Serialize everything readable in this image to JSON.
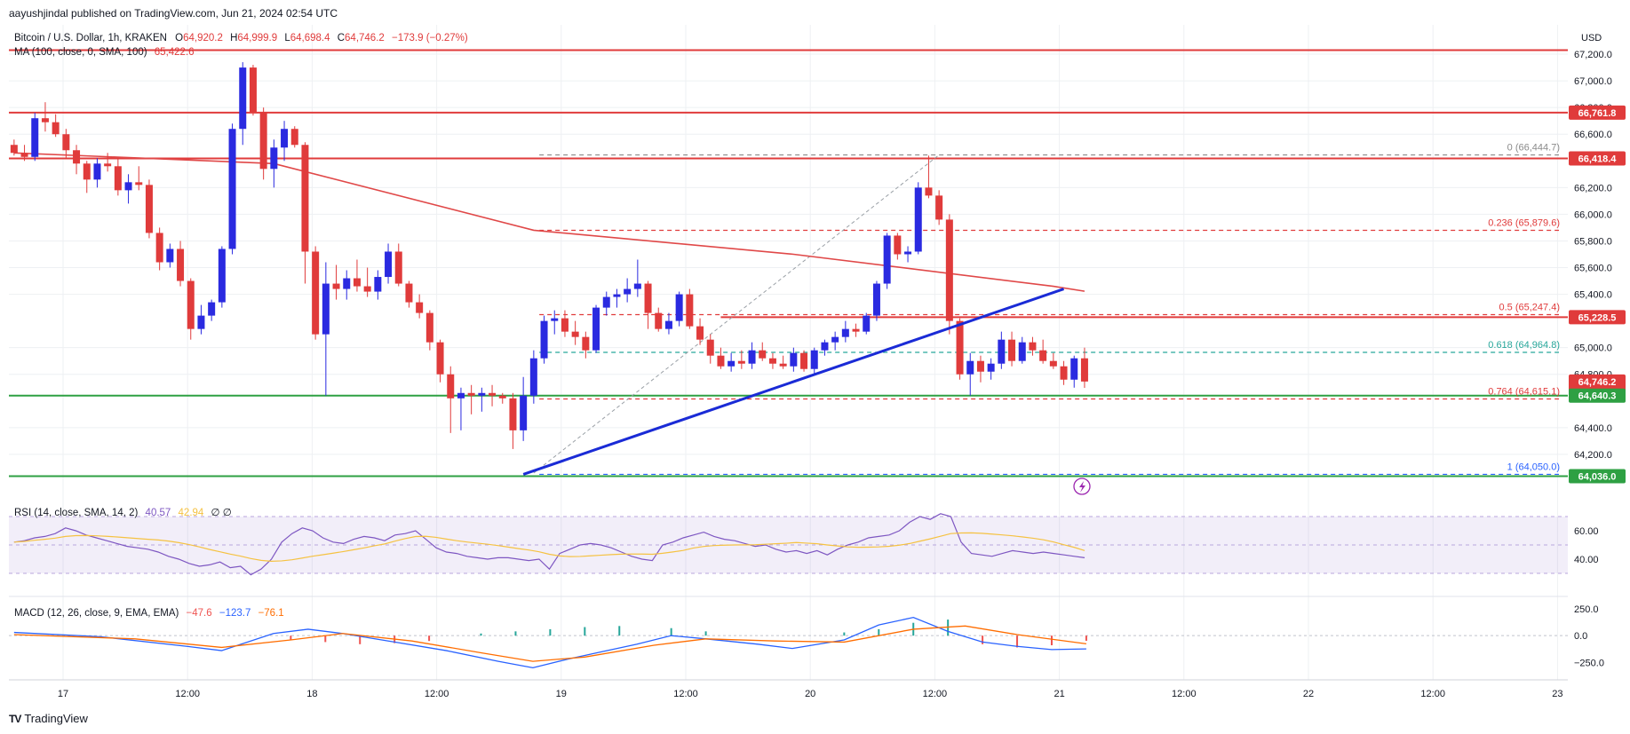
{
  "header": {
    "publish_line": "aayushjindal published on TradingView.com, Jun 21, 2024 02:54 UTC"
  },
  "legend": {
    "symbol": "Bitcoin / U.S. Dollar, 1h, KRAKEN",
    "ohlc": [
      {
        "label": "O",
        "value": "64,920.2"
      },
      {
        "label": "H",
        "value": "64,999.9"
      },
      {
        "label": "L",
        "value": "64,698.4"
      },
      {
        "label": "C",
        "value": "64,746.2"
      }
    ],
    "change": "−173.9 (−0.27%)",
    "ma_label": "MA (100, close, 0, SMA, 100)",
    "ma_value": "65,422.6",
    "rsi_label": "RSI (14, close, SMA, 14, 2)",
    "rsi_value": "40.57",
    "rsi_ma_value": "42.94",
    "rsi_extra": "∅  ∅",
    "macd_label": "MACD (12, 26, close, 9, EMA, EMA)",
    "macd_hist": "−47.6",
    "macd_value": "−123.7",
    "macd_signal": "−76.1"
  },
  "footer": {
    "brand": "TradingView",
    "logo_text": "TV"
  },
  "colors": {
    "up": "#2a2ae0",
    "down": "#e03b3b",
    "ma": "#e04848",
    "support": "#2ea043",
    "trend": "#1a2bd6",
    "rsi": "#7e57c2",
    "rsi_ma": "#f5c242",
    "macd": "#2962ff",
    "signal": "#ff6d00",
    "hist_up": "#26a69a",
    "hist_down": "#ef5350"
  },
  "chart_data": {
    "type": "candlestick",
    "currency": "USD",
    "y_ticks": [
      "67,200.0",
      "67,000.0",
      "66,800.0",
      "66,600.0",
      "66,200.0",
      "66,000.0",
      "65,800.0",
      "65,600.0",
      "65,400.0",
      "65,000.0",
      "64,800.0",
      "64,400.0",
      "64,200.0"
    ],
    "ylim": [
      63880,
      67420
    ],
    "x_ticks": [
      "17",
      "12:00",
      "18",
      "12:00",
      "19",
      "12:00",
      "20",
      "12:00",
      "21",
      "12:00",
      "22",
      "12:00",
      "23"
    ],
    "candles": [
      [
        66520,
        66560,
        66440,
        66460
      ],
      [
        66460,
        66520,
        66400,
        66430
      ],
      [
        66430,
        66760,
        66400,
        66720
      ],
      [
        66720,
        66840,
        66620,
        66690
      ],
      [
        66690,
        66750,
        66580,
        66600
      ],
      [
        66600,
        66640,
        66420,
        66480
      ],
      [
        66480,
        66520,
        66300,
        66380
      ],
      [
        66380,
        66400,
        66160,
        66260
      ],
      [
        66260,
        66420,
        66200,
        66380
      ],
      [
        66380,
        66460,
        66320,
        66360
      ],
      [
        66360,
        66420,
        66140,
        66180
      ],
      [
        66180,
        66300,
        66080,
        66240
      ],
      [
        66240,
        66360,
        66180,
        66220
      ],
      [
        66220,
        66260,
        65820,
        65860
      ],
      [
        65860,
        65900,
        65580,
        65640
      ],
      [
        65640,
        65780,
        65600,
        65740
      ],
      [
        65740,
        65800,
        65460,
        65500
      ],
      [
        65500,
        65520,
        65060,
        65140
      ],
      [
        65140,
        65320,
        65100,
        65240
      ],
      [
        65240,
        65360,
        65200,
        65340
      ],
      [
        65340,
        65760,
        65300,
        65740
      ],
      [
        65740,
        66680,
        65700,
        66640
      ],
      [
        66640,
        67140,
        66520,
        67100
      ],
      [
        67100,
        67120,
        66740,
        66760
      ],
      [
        66760,
        66800,
        66260,
        66340
      ],
      [
        66340,
        66560,
        66200,
        66500
      ],
      [
        66500,
        66700,
        66400,
        66640
      ],
      [
        66640,
        66660,
        66500,
        66520
      ],
      [
        66520,
        66540,
        65480,
        65720
      ],
      [
        65720,
        65760,
        65060,
        65100
      ],
      [
        65100,
        65640,
        64640,
        65480
      ],
      [
        65480,
        65620,
        65360,
        65440
      ],
      [
        65440,
        65580,
        65360,
        65520
      ],
      [
        65520,
        65660,
        65420,
        65460
      ],
      [
        65460,
        65600,
        65380,
        65420
      ],
      [
        65420,
        65580,
        65360,
        65530
      ],
      [
        65530,
        65780,
        65480,
        65720
      ],
      [
        65720,
        65780,
        65460,
        65480
      ],
      [
        65480,
        65500,
        65300,
        65340
      ],
      [
        65340,
        65400,
        65220,
        65260
      ],
      [
        65260,
        65280,
        64980,
        65040
      ],
      [
        65040,
        65060,
        64740,
        64800
      ],
      [
        64800,
        64860,
        64360,
        64620
      ],
      [
        64620,
        64700,
        64380,
        64660
      ],
      [
        64660,
        64720,
        64500,
        64640
      ],
      [
        64640,
        64700,
        64520,
        64660
      ],
      [
        64660,
        64720,
        64560,
        64640
      ],
      [
        64640,
        64660,
        64580,
        64620
      ],
      [
        64620,
        64660,
        64240,
        64380
      ],
      [
        64380,
        64780,
        64300,
        64640
      ],
      [
        64640,
        64980,
        64580,
        64920
      ],
      [
        64920,
        65240,
        64880,
        65200
      ],
      [
        65200,
        65280,
        65100,
        65220
      ],
      [
        65220,
        65280,
        65080,
        65120
      ],
      [
        65120,
        65200,
        65020,
        65080
      ],
      [
        65080,
        65120,
        64920,
        64980
      ],
      [
        64980,
        65320,
        64960,
        65300
      ],
      [
        65300,
        65420,
        65240,
        65380
      ],
      [
        65380,
        65440,
        65300,
        65400
      ],
      [
        65400,
        65520,
        65340,
        65440
      ],
      [
        65440,
        65660,
        65380,
        65480
      ],
      [
        65480,
        65500,
        65140,
        65260
      ],
      [
        65260,
        65300,
        65120,
        65140
      ],
      [
        65140,
        65260,
        65100,
        65200
      ],
      [
        65200,
        65420,
        65160,
        65400
      ],
      [
        65400,
        65440,
        65140,
        65160
      ],
      [
        65160,
        65220,
        65020,
        65060
      ],
      [
        65060,
        65100,
        64880,
        64940
      ],
      [
        64940,
        65000,
        64840,
        64860
      ],
      [
        64860,
        64960,
        64820,
        64900
      ],
      [
        64900,
        64980,
        64840,
        64880
      ],
      [
        64880,
        65040,
        64840,
        64980
      ],
      [
        64980,
        65040,
        64900,
        64920
      ],
      [
        64920,
        64960,
        64840,
        64880
      ],
      [
        64880,
        64940,
        64840,
        64860
      ],
      [
        64860,
        65000,
        64820,
        64960
      ],
      [
        64960,
        64980,
        64820,
        64840
      ],
      [
        64840,
        65000,
        64800,
        64980
      ],
      [
        64980,
        65060,
        64940,
        65040
      ],
      [
        65040,
        65120,
        64980,
        65080
      ],
      [
        65080,
        65200,
        65040,
        65140
      ],
      [
        65140,
        65180,
        65080,
        65120
      ],
      [
        65120,
        65260,
        65100,
        65240
      ],
      [
        65240,
        65500,
        65200,
        65480
      ],
      [
        65480,
        65860,
        65440,
        65840
      ],
      [
        65840,
        65860,
        65660,
        65700
      ],
      [
        65700,
        65760,
        65640,
        65720
      ],
      [
        65720,
        66240,
        65700,
        66200
      ],
      [
        66200,
        66440,
        66120,
        66140
      ],
      [
        66140,
        66180,
        65920,
        65960
      ],
      [
        65960,
        66000,
        65100,
        65200
      ],
      [
        65200,
        65220,
        64760,
        64800
      ],
      [
        64800,
        64960,
        64640,
        64900
      ],
      [
        64900,
        64940,
        64740,
        64820
      ],
      [
        64820,
        64920,
        64760,
        64880
      ],
      [
        64880,
        65120,
        64840,
        65060
      ],
      [
        65060,
        65120,
        64860,
        64900
      ],
      [
        64900,
        65080,
        64880,
        65040
      ],
      [
        65040,
        65080,
        64940,
        64980
      ],
      [
        64980,
        65060,
        64880,
        64900
      ],
      [
        64900,
        64960,
        64840,
        64860
      ],
      [
        64860,
        64900,
        64720,
        64760
      ],
      [
        64760,
        64940,
        64700,
        64920
      ],
      [
        64920,
        65000,
        64698,
        64746
      ]
    ],
    "ma_100": [
      [
        0,
        66460
      ],
      [
        25,
        66380
      ],
      [
        50,
        65880
      ],
      [
        75,
        65700
      ],
      [
        100,
        65460
      ],
      [
        103,
        65423
      ]
    ],
    "price_labels": [
      {
        "value": "66,761.8",
        "color": "#e03b3b"
      },
      {
        "value": "66,418.4",
        "color": "#e03b3b"
      },
      {
        "value": "65,228.5",
        "color": "#e03b3b"
      },
      {
        "value": "64,746.2",
        "color": "#e03b3b",
        "sub": "05:35"
      },
      {
        "value": "64,640.3",
        "color": "#2ea043"
      },
      {
        "value": "64,036.0",
        "color": "#2ea043"
      }
    ],
    "horizontal_levels": [
      {
        "price": 67230,
        "color": "#e03b3b"
      },
      {
        "price": 66761.8,
        "color": "#e03b3b"
      },
      {
        "price": 66418.4,
        "color": "#e03b3b"
      },
      {
        "price": 65228.5,
        "color": "#e03b3b",
        "from": 68
      },
      {
        "price": 64640.3,
        "color": "#2ea043"
      },
      {
        "price": 64036.0,
        "color": "#2ea043"
      }
    ],
    "fibonacci": {
      "from_index": 49,
      "to_index": 104,
      "levels": [
        {
          "label": "0 (66,444.7)",
          "price": 66444.7,
          "color": "#8a8a8a"
        },
        {
          "label": "0.236 (65,879.6)",
          "price": 65879.6,
          "color": "#e03b3b"
        },
        {
          "label": "0.5 (65,247.4)",
          "price": 65247.4,
          "color": "#e03b3b"
        },
        {
          "label": "0.618 (64,964.8)",
          "price": 64964.8,
          "color": "#26a69a"
        },
        {
          "label": "0.764 (64,615.1)",
          "price": 64615.1,
          "color": "#e03b3b"
        },
        {
          "label": "1 (64,050.0)",
          "price": 64050.0,
          "color": "#2962ff"
        }
      ]
    },
    "trendline": [
      [
        49,
        64050
      ],
      [
        101,
        65440
      ]
    ],
    "fib_diagonal": [
      [
        50,
        64060
      ],
      [
        89,
        66444.7
      ]
    ],
    "rsi": {
      "y_ticks": [
        "60.00",
        "40.00"
      ],
      "ylim": [
        20,
        80
      ],
      "band": [
        30,
        70
      ],
      "values": [
        52,
        53,
        55,
        56,
        58,
        62,
        60,
        57,
        55,
        53,
        51,
        49,
        48,
        47,
        45,
        42,
        40,
        37,
        35,
        36,
        38,
        34,
        35,
        29,
        33,
        40,
        52,
        58,
        62,
        60,
        55,
        52,
        51,
        54,
        56,
        55,
        53,
        57,
        58,
        60,
        54,
        48,
        45,
        44,
        42,
        41,
        40,
        41,
        41,
        40,
        39,
        40,
        33,
        44,
        47,
        50,
        51,
        50,
        48,
        45,
        42,
        40,
        39,
        50,
        52,
        55,
        57,
        59,
        56,
        54,
        53,
        51,
        49,
        50,
        47,
        45,
        46,
        44,
        46,
        43,
        47,
        50,
        52,
        55,
        56,
        57,
        60,
        66,
        70,
        68,
        72,
        70,
        52,
        44,
        43,
        42,
        44,
        46,
        45,
        44,
        45,
        44,
        43,
        42,
        41
      ]
    },
    "macd": {
      "y_ticks": [
        "250.0",
        "0.0",
        "−250.0"
      ],
      "ylim": [
        -380,
        300
      ],
      "macd_line": [
        [
          0,
          30
        ],
        [
          10,
          -10
        ],
        [
          20,
          -100
        ],
        [
          24,
          -140
        ],
        [
          30,
          20
        ],
        [
          34,
          60
        ],
        [
          38,
          20
        ],
        [
          44,
          -60
        ],
        [
          50,
          -140
        ],
        [
          56,
          -240
        ],
        [
          60,
          -300
        ],
        [
          64,
          -220
        ],
        [
          68,
          -150
        ],
        [
          72,
          -80
        ],
        [
          76,
          0
        ],
        [
          80,
          -30
        ],
        [
          86,
          -80
        ],
        [
          90,
          -120
        ],
        [
          96,
          -40
        ],
        [
          100,
          100
        ],
        [
          104,
          170
        ],
        [
          108,
          40
        ],
        [
          112,
          -60
        ],
        [
          116,
          -100
        ],
        [
          120,
          -130
        ],
        [
          124,
          -124
        ]
      ],
      "signal_line": [
        [
          0,
          10
        ],
        [
          14,
          -30
        ],
        [
          24,
          -110
        ],
        [
          32,
          -40
        ],
        [
          38,
          20
        ],
        [
          46,
          -50
        ],
        [
          54,
          -160
        ],
        [
          60,
          -240
        ],
        [
          66,
          -200
        ],
        [
          74,
          -90
        ],
        [
          80,
          -30
        ],
        [
          88,
          -50
        ],
        [
          96,
          -60
        ],
        [
          104,
          60
        ],
        [
          110,
          90
        ],
        [
          116,
          10
        ],
        [
          124,
          -76
        ]
      ],
      "hist_up": [
        [
          54,
          20
        ],
        [
          58,
          40
        ],
        [
          62,
          60
        ],
        [
          66,
          80
        ],
        [
          70,
          90
        ],
        [
          76,
          70
        ],
        [
          80,
          40
        ],
        [
          96,
          30
        ],
        [
          100,
          60
        ],
        [
          104,
          120
        ],
        [
          108,
          150
        ]
      ],
      "hist_down": [
        [
          32,
          -40
        ],
        [
          36,
          -60
        ],
        [
          40,
          -80
        ],
        [
          44,
          -70
        ],
        [
          48,
          -50
        ],
        [
          112,
          -80
        ],
        [
          116,
          -110
        ],
        [
          120,
          -90
        ],
        [
          124,
          -48
        ]
      ]
    }
  }
}
